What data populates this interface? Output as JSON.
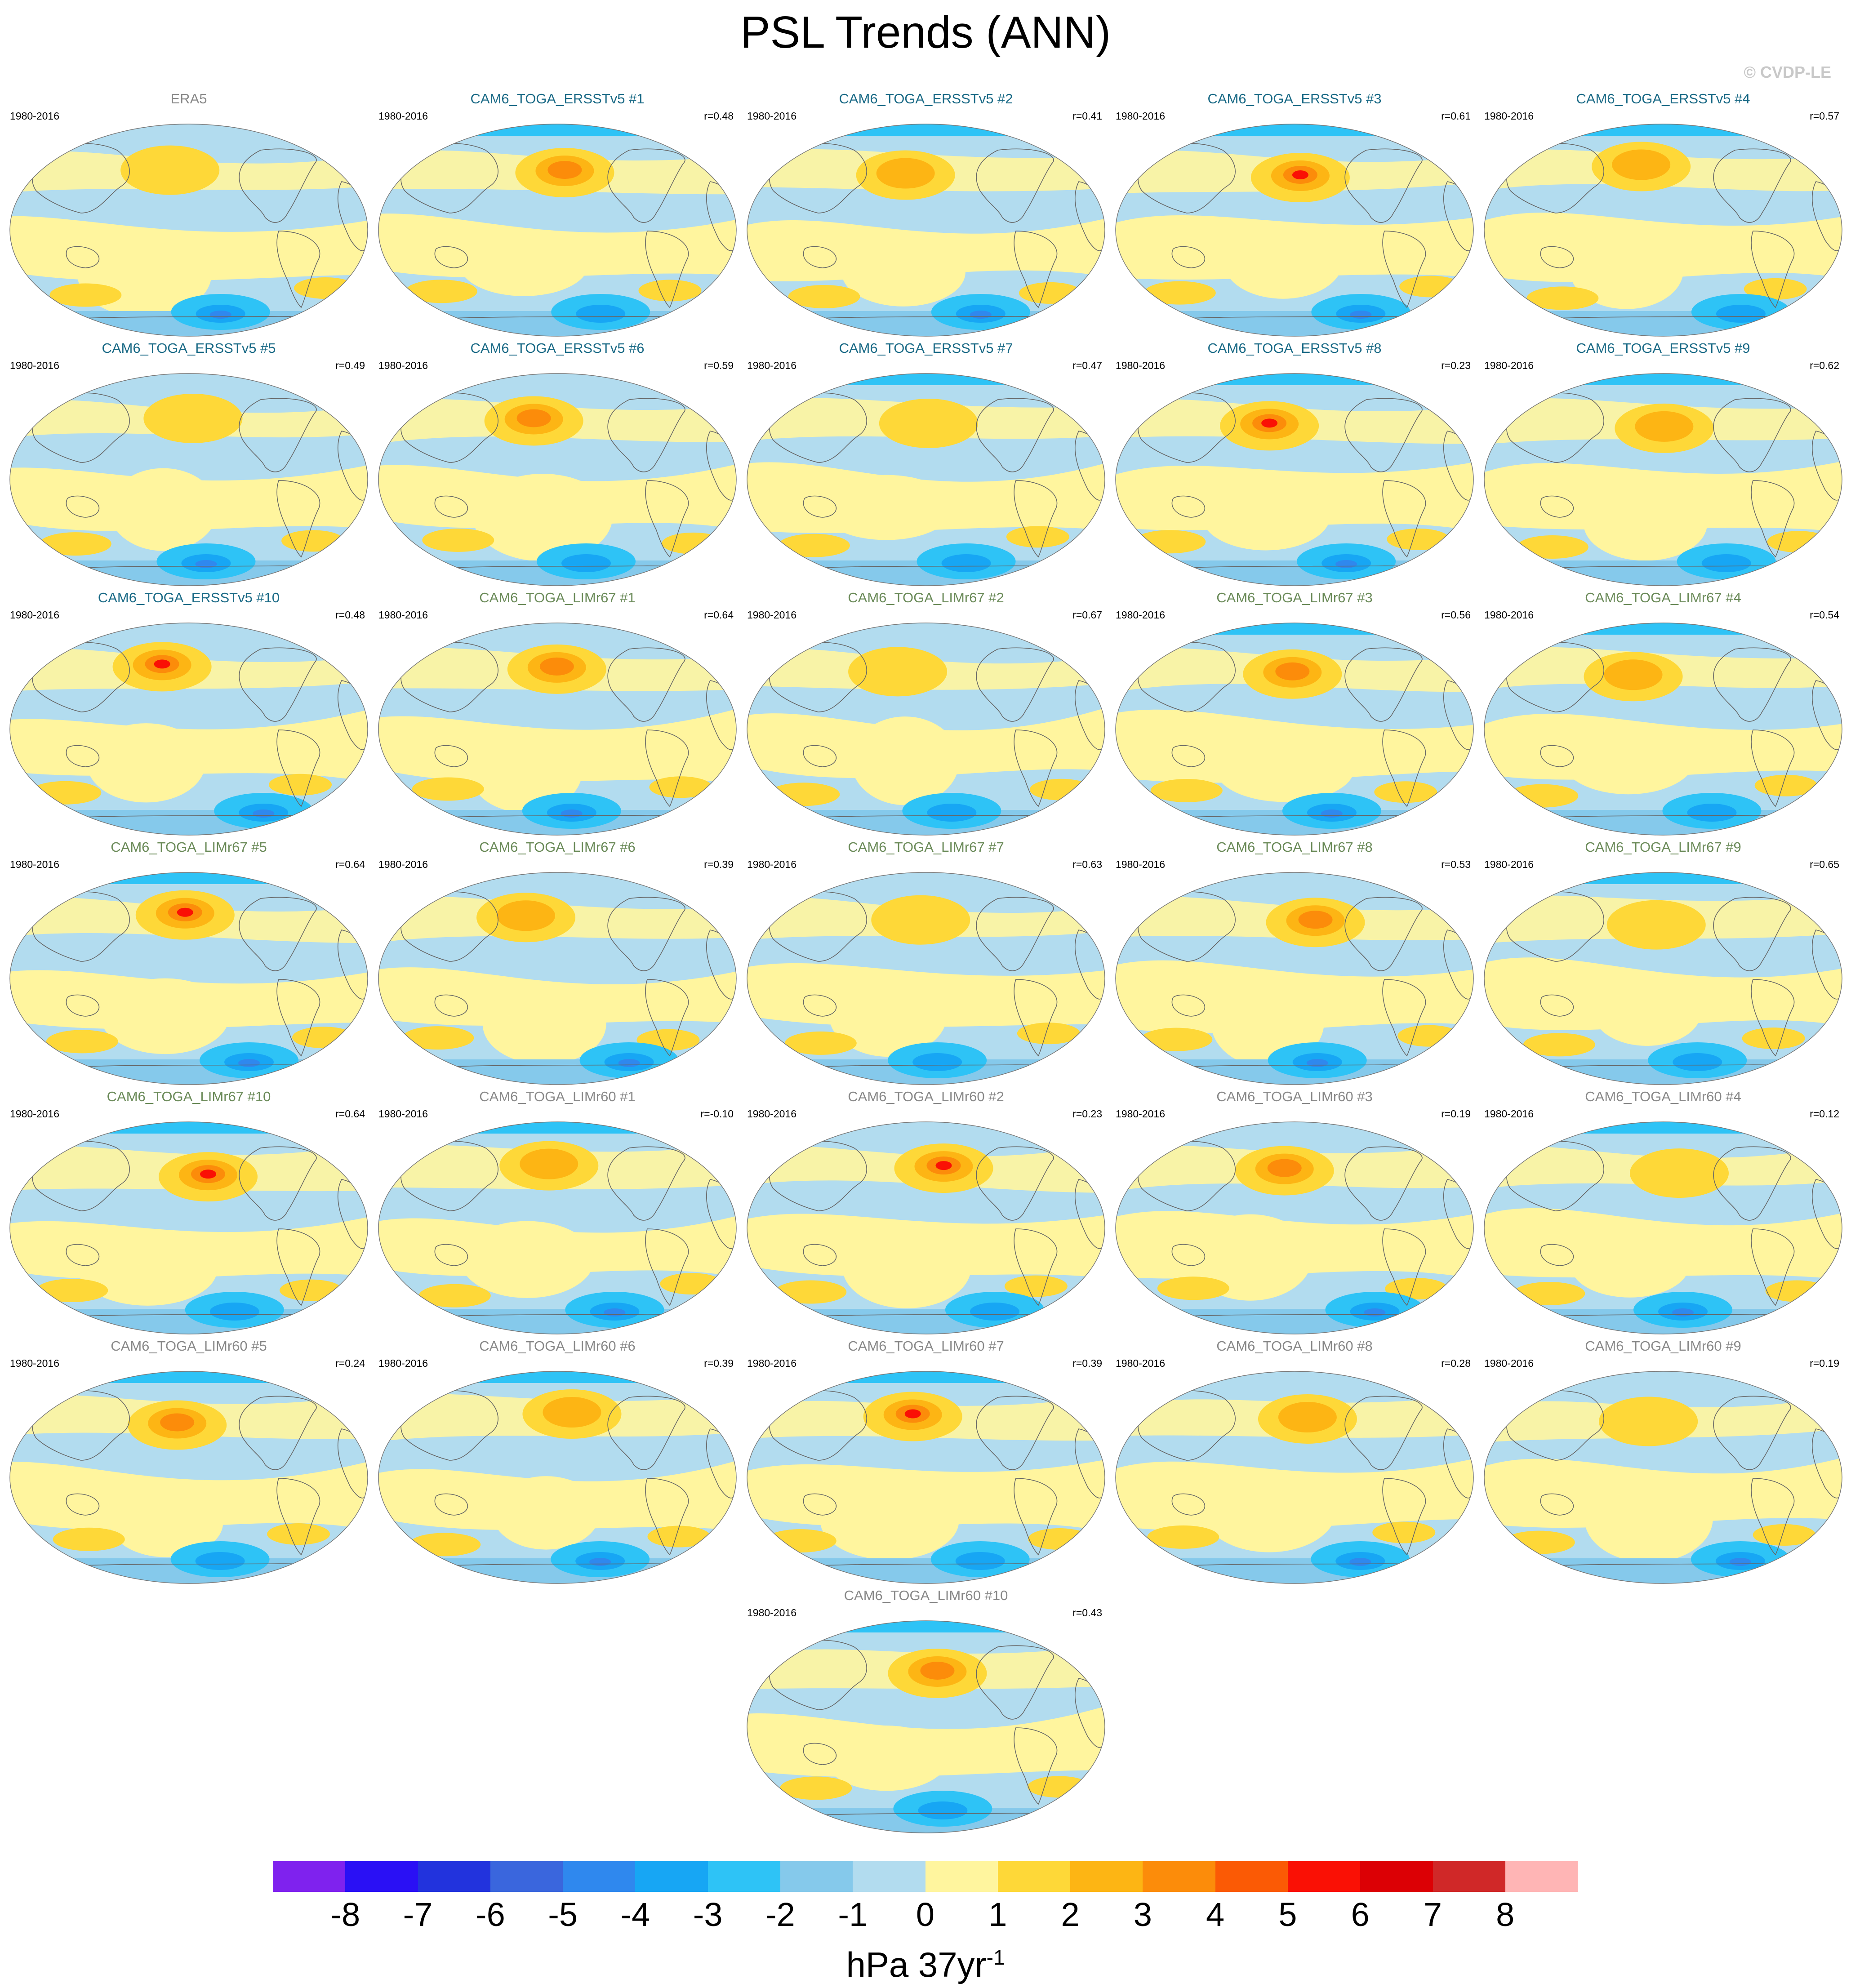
{
  "title": "PSL Trends (ANN)",
  "copyright": "© CVDP-LE",
  "period": "1980-2016",
  "colors": {
    "obs_title": "#888888",
    "ersst_title": "#1a6a86",
    "limr67_title": "#6a8a58",
    "limr60_title": "#888888",
    "ocean_base": "#b2dcef",
    "coast": "#666666"
  },
  "panels": [
    {
      "title": "ERA5",
      "r": "",
      "group": "obs"
    },
    {
      "title": "CAM6_TOGA_ERSSTv5 #1",
      "r": "r=0.48",
      "group": "ersst"
    },
    {
      "title": "CAM6_TOGA_ERSSTv5 #2",
      "r": "r=0.41",
      "group": "ersst"
    },
    {
      "title": "CAM6_TOGA_ERSSTv5 #3",
      "r": "r=0.61",
      "group": "ersst"
    },
    {
      "title": "CAM6_TOGA_ERSSTv5 #4",
      "r": "r=0.57",
      "group": "ersst"
    },
    {
      "title": "CAM6_TOGA_ERSSTv5 #5",
      "r": "r=0.49",
      "group": "ersst"
    },
    {
      "title": "CAM6_TOGA_ERSSTv5 #6",
      "r": "r=0.59",
      "group": "ersst"
    },
    {
      "title": "CAM6_TOGA_ERSSTv5 #7",
      "r": "r=0.47",
      "group": "ersst"
    },
    {
      "title": "CAM6_TOGA_ERSSTv5 #8",
      "r": "r=0.23",
      "group": "ersst"
    },
    {
      "title": "CAM6_TOGA_ERSSTv5 #9",
      "r": "r=0.62",
      "group": "ersst"
    },
    {
      "title": "CAM6_TOGA_ERSSTv5 #10",
      "r": "r=0.48",
      "group": "ersst"
    },
    {
      "title": "CAM6_TOGA_LIMr67 #1",
      "r": "r=0.64",
      "group": "limr67"
    },
    {
      "title": "CAM6_TOGA_LIMr67 #2",
      "r": "r=0.67",
      "group": "limr67"
    },
    {
      "title": "CAM6_TOGA_LIMr67 #3",
      "r": "r=0.56",
      "group": "limr67"
    },
    {
      "title": "CAM6_TOGA_LIMr67 #4",
      "r": "r=0.54",
      "group": "limr67"
    },
    {
      "title": "CAM6_TOGA_LIMr67 #5",
      "r": "r=0.64",
      "group": "limr67"
    },
    {
      "title": "CAM6_TOGA_LIMr67 #6",
      "r": "r=0.39",
      "group": "limr67"
    },
    {
      "title": "CAM6_TOGA_LIMr67 #7",
      "r": "r=0.63",
      "group": "limr67"
    },
    {
      "title": "CAM6_TOGA_LIMr67 #8",
      "r": "r=0.53",
      "group": "limr67"
    },
    {
      "title": "CAM6_TOGA_LIMr67 #9",
      "r": "r=0.65",
      "group": "limr67"
    },
    {
      "title": "CAM6_TOGA_LIMr67 #10",
      "r": "r=0.64",
      "group": "limr67"
    },
    {
      "title": "CAM6_TOGA_LIMr60 #1",
      "r": "r=-0.10",
      "group": "limr60"
    },
    {
      "title": "CAM6_TOGA_LIMr60 #2",
      "r": "r=0.23",
      "group": "limr60"
    },
    {
      "title": "CAM6_TOGA_LIMr60 #3",
      "r": "r=0.19",
      "group": "limr60"
    },
    {
      "title": "CAM6_TOGA_LIMr60 #4",
      "r": "r=0.12",
      "group": "limr60"
    },
    {
      "title": "CAM6_TOGA_LIMr60 #5",
      "r": "r=0.24",
      "group": "limr60"
    },
    {
      "title": "CAM6_TOGA_LIMr60 #6",
      "r": "r=0.39",
      "group": "limr60"
    },
    {
      "title": "CAM6_TOGA_LIMr60 #7",
      "r": "r=0.39",
      "group": "limr60"
    },
    {
      "title": "CAM6_TOGA_LIMr60 #8",
      "r": "r=0.28",
      "group": "limr60"
    },
    {
      "title": "CAM6_TOGA_LIMr60 #9",
      "r": "r=0.19",
      "group": "limr60"
    },
    {
      "title": "CAM6_TOGA_LIMr60 #10",
      "r": "r=0.43",
      "group": "limr60"
    }
  ],
  "colorbar": {
    "colors": [
      "#7f22ee",
      "#2a10f5",
      "#2233dd",
      "#3a66dd",
      "#2f88ee",
      "#17a6f4",
      "#2ec3f6",
      "#85c9eb",
      "#b2dcef",
      "#fff59e",
      "#fed838",
      "#fdb514",
      "#fc8c0a",
      "#fb5a05",
      "#fa1005",
      "#dc0005",
      "#d02828",
      "#ffb5b5"
    ],
    "labels": [
      "-8",
      "-7",
      "-6",
      "-5",
      "-4",
      "-3",
      "-2",
      "-1",
      "0",
      "1",
      "2",
      "3",
      "4",
      "5",
      "6",
      "7",
      "8"
    ],
    "units_main": "hPa 37yr",
    "units_sup": "-1"
  }
}
